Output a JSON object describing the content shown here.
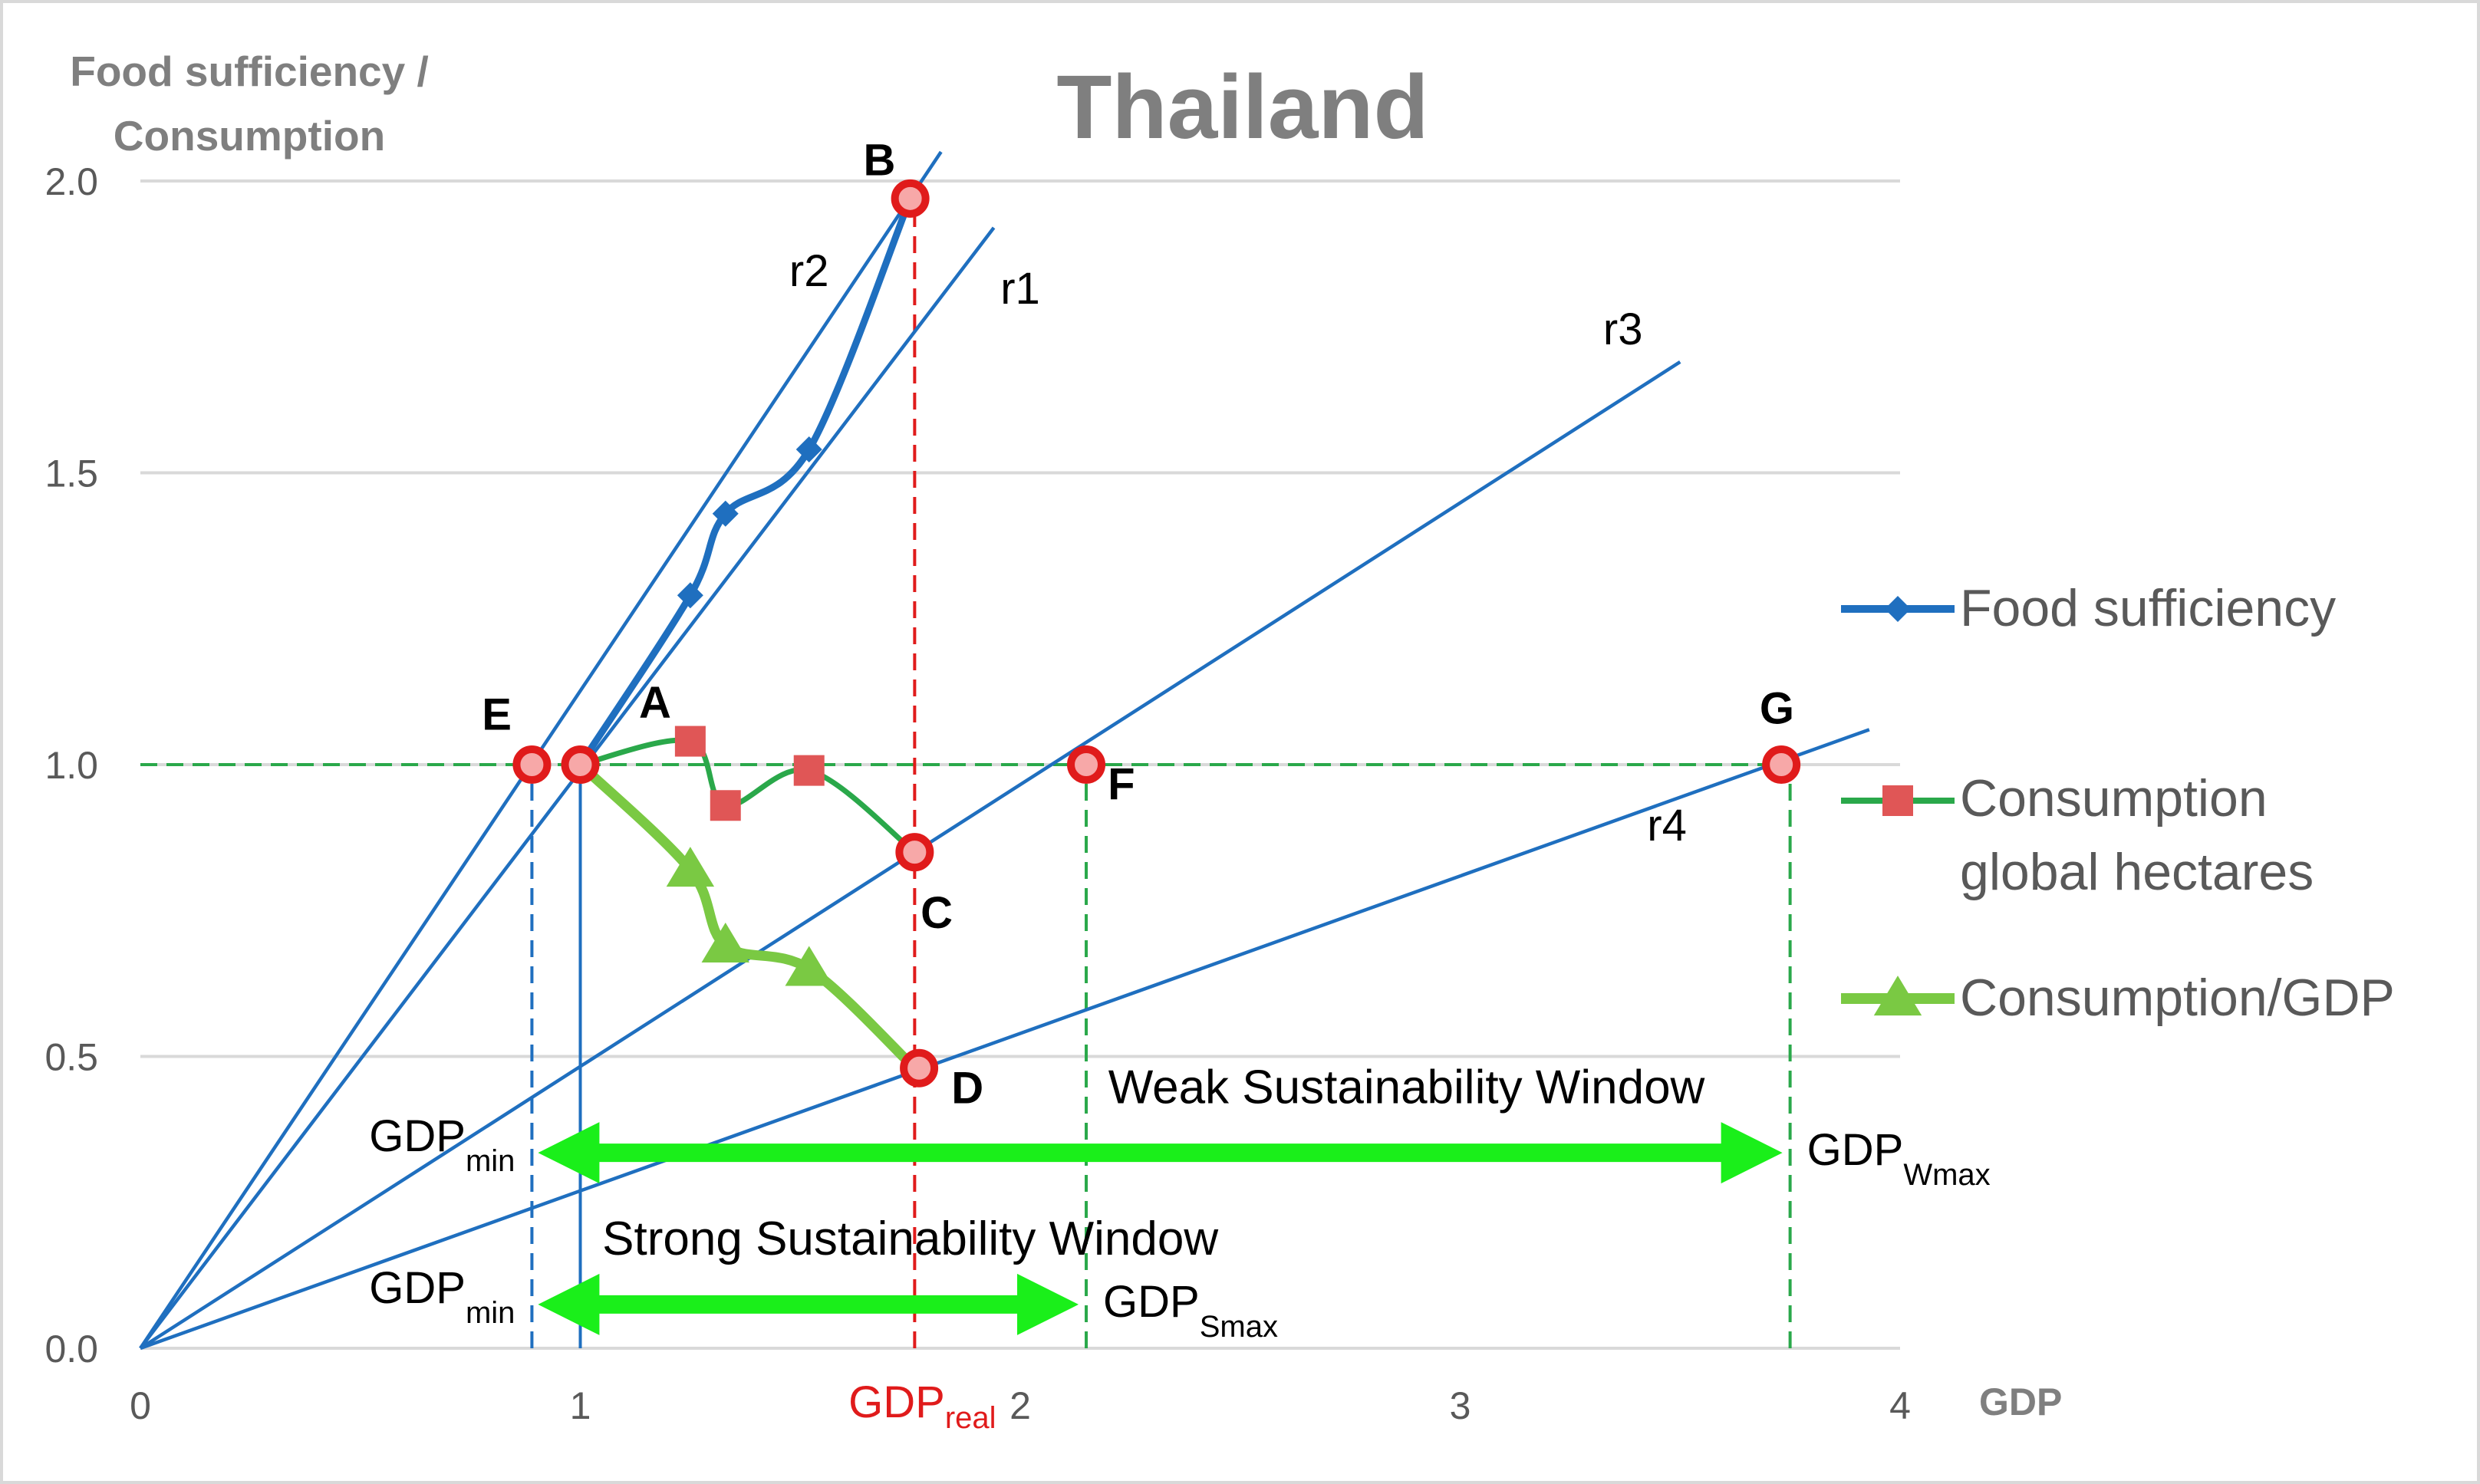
{
  "chart_data": {
    "type": "line",
    "title": "Thailand",
    "ylabel": "Food sufficiency / Consumption",
    "ylabel_lines": [
      "Food sufficiency /",
      "Consumption"
    ],
    "xlabel": "GDP",
    "xlim": [
      0,
      4
    ],
    "ylim": [
      0,
      2
    ],
    "grid": true,
    "x_ticks": [
      {
        "value": 0,
        "label": "0"
      },
      {
        "value": 1,
        "label": "1"
      },
      {
        "value": 2,
        "label": "2"
      },
      {
        "value": 3,
        "label": "3"
      },
      {
        "value": 4,
        "label": "4"
      }
    ],
    "y_ticks": [
      {
        "value": 0,
        "label": "0.0"
      },
      {
        "value": 0.5,
        "label": "0.5"
      },
      {
        "value": 1,
        "label": "1.0"
      },
      {
        "value": 1.5,
        "label": "1.5"
      },
      {
        "value": 2,
        "label": "2.0"
      }
    ],
    "legend_position": "right",
    "series": [
      {
        "name": "Food sufficiency",
        "color": "#1f6fbf",
        "marker": "diamond",
        "x": [
          1.0,
          1.25,
          1.33,
          1.52,
          1.75
        ],
        "y": [
          1.0,
          1.29,
          1.43,
          1.54,
          1.97
        ]
      },
      {
        "name": "Consumption global hectares",
        "legend_lines": [
          "Consumption",
          "global hectares"
        ],
        "color": "#2aa84a",
        "marker_color": "#e05656",
        "marker": "square",
        "x": [
          1.0,
          1.25,
          1.33,
          1.52,
          1.76
        ],
        "y": [
          1.0,
          1.04,
          0.93,
          0.99,
          0.85
        ]
      },
      {
        "name": "Consumption/GDP",
        "color": "#7ac943",
        "marker": "triangle",
        "x": [
          1.0,
          1.25,
          1.33,
          1.52,
          1.76
        ],
        "y": [
          1.0,
          0.82,
          0.69,
          0.65,
          0.48
        ]
      }
    ],
    "rays": [
      {
        "label": "r1",
        "end": [
          1.94,
          1.92
        ],
        "label_at": [
          2.0,
          1.79
        ]
      },
      {
        "label": "r2",
        "end": [
          1.82,
          2.05
        ],
        "label_at": [
          1.52,
          1.82
        ]
      },
      {
        "label": "r3",
        "end": [
          3.5,
          1.69
        ],
        "label_at": [
          3.37,
          1.72
        ]
      },
      {
        "label": "r4",
        "end": [
          3.93,
          1.06
        ],
        "label_at": [
          3.47,
          0.87
        ]
      }
    ],
    "reference_lines": [
      {
        "type": "horizontal",
        "y": 1.0,
        "x_from": 0.0,
        "x_to": 3.75,
        "color": "#2aa84a",
        "style": "dashed"
      },
      {
        "type": "vertical",
        "x": 0.89,
        "y_from": 0.0,
        "y_to": 1.0,
        "color": "#1f6fbf",
        "style": "dashed"
      },
      {
        "type": "vertical",
        "x": 1.0,
        "y_from": 0.0,
        "y_to": 1.0,
        "color": "#1f6fbf",
        "style": "solid"
      },
      {
        "type": "vertical",
        "x": 1.76,
        "y_from": 0.0,
        "y_to": 1.97,
        "color": "#e01b1b",
        "style": "dashed"
      },
      {
        "type": "vertical",
        "x": 2.15,
        "y_from": 0.0,
        "y_to": 1.0,
        "color": "#2aa84a",
        "style": "dashed"
      },
      {
        "type": "vertical",
        "x": 3.75,
        "y_from": 0.0,
        "y_to": 1.0,
        "color": "#2aa84a",
        "style": "dashed"
      }
    ],
    "key_points": [
      {
        "label": "B",
        "x": 1.75,
        "y": 1.97,
        "label_at": [
          1.68,
          2.01
        ]
      },
      {
        "label": "E",
        "x": 0.89,
        "y": 1.0,
        "label_at": [
          0.81,
          1.06
        ]
      },
      {
        "label": "A",
        "x": 1.0,
        "y": 1.0,
        "label_at": [
          1.17,
          1.08
        ]
      },
      {
        "label": "C",
        "x": 1.76,
        "y": 0.85,
        "label_at": [
          1.81,
          0.72
        ]
      },
      {
        "label": "F",
        "x": 2.15,
        "y": 1.0,
        "label_at": [
          2.23,
          0.94
        ]
      },
      {
        "label": "G",
        "x": 3.73,
        "y": 1.0,
        "label_at": [
          3.72,
          1.07
        ]
      },
      {
        "label": "D",
        "x": 1.77,
        "y": 0.48,
        "label_at": [
          1.88,
          0.42
        ]
      }
    ],
    "windows": [
      {
        "name": "Weak Sustainability Window",
        "x_from": 0.89,
        "x_to": 3.75,
        "y": 0.335,
        "label_at": [
          2.2,
          0.42
        ],
        "left_label": "GDP",
        "left_sub": "min",
        "right_label": "GDP",
        "right_sub": "Wmax"
      },
      {
        "name": "Strong Sustainability Window",
        "x_from": 0.89,
        "x_to": 2.15,
        "y": 0.075,
        "label_at": [
          1.05,
          0.16
        ],
        "left_label": "GDP",
        "left_sub": "min",
        "right_label": "GDP",
        "right_sub": "Smax"
      }
    ],
    "gdp_real_label": {
      "main": "GDP",
      "sub": "real",
      "x": 1.76
    }
  }
}
